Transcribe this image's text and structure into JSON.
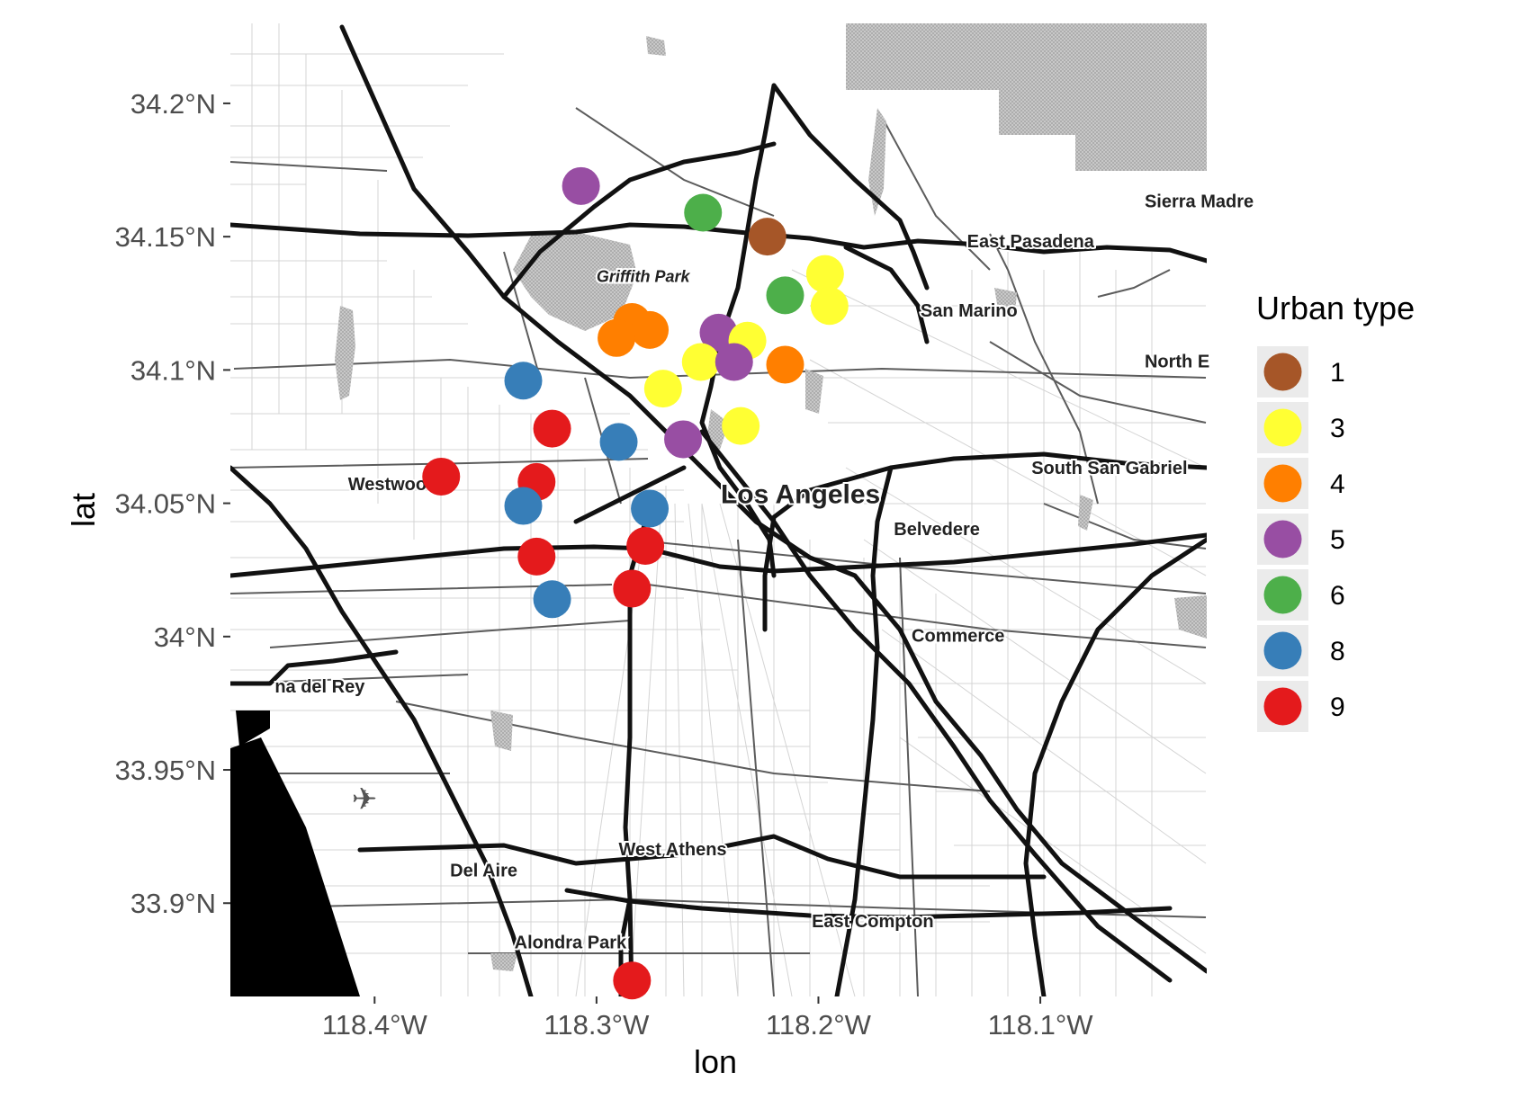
{
  "chart_data": {
    "type": "scatter",
    "title": "",
    "xlabel": "lon",
    "ylabel": "lat",
    "xlim": [
      -118.465,
      -118.025
    ],
    "ylim": [
      33.865,
      34.23
    ],
    "x_ticks": [
      {
        "value": -118.4,
        "label": "118.4°W"
      },
      {
        "value": -118.3,
        "label": "118.3°W"
      },
      {
        "value": -118.2,
        "label": "118.2°W"
      },
      {
        "value": -118.1,
        "label": "118.1°W"
      }
    ],
    "y_ticks": [
      {
        "value": 34.2,
        "label": "34.2°N"
      },
      {
        "value": 34.15,
        "label": "34.15°N"
      },
      {
        "value": 34.1,
        "label": "34.1°N"
      },
      {
        "value": 34.05,
        "label": "34.05°N"
      },
      {
        "value": 34.0,
        "label": "34°N"
      },
      {
        "value": 33.95,
        "label": "33.95°N"
      },
      {
        "value": 33.9,
        "label": "33.9°N"
      }
    ],
    "legend": {
      "title": "Urban type",
      "position": "right",
      "entries": [
        {
          "label": "1",
          "color": "#a65628"
        },
        {
          "label": "3",
          "color": "#ffff33"
        },
        {
          "label": "4",
          "color": "#ff7f00"
        },
        {
          "label": "5",
          "color": "#984ea3"
        },
        {
          "label": "6",
          "color": "#4daf4a"
        },
        {
          "label": "8",
          "color": "#377eb8"
        },
        {
          "label": "9",
          "color": "#e41a1c"
        }
      ]
    },
    "points": [
      {
        "lon": -118.307,
        "lat": 34.169,
        "type": "5"
      },
      {
        "lon": -118.252,
        "lat": 34.159,
        "type": "6"
      },
      {
        "lon": -118.223,
        "lat": 34.15,
        "type": "1"
      },
      {
        "lon": -118.197,
        "lat": 34.136,
        "type": "3"
      },
      {
        "lon": -118.215,
        "lat": 34.128,
        "type": "6"
      },
      {
        "lon": -118.195,
        "lat": 34.124,
        "type": "3"
      },
      {
        "lon": -118.284,
        "lat": 34.118,
        "type": "4"
      },
      {
        "lon": -118.276,
        "lat": 34.115,
        "type": "4"
      },
      {
        "lon": -118.291,
        "lat": 34.112,
        "type": "4"
      },
      {
        "lon": -118.245,
        "lat": 34.114,
        "type": "5"
      },
      {
        "lon": -118.232,
        "lat": 34.111,
        "type": "3"
      },
      {
        "lon": -118.253,
        "lat": 34.103,
        "type": "3"
      },
      {
        "lon": -118.238,
        "lat": 34.103,
        "type": "5"
      },
      {
        "lon": -118.215,
        "lat": 34.102,
        "type": "4"
      },
      {
        "lon": -118.333,
        "lat": 34.096,
        "type": "8"
      },
      {
        "lon": -118.27,
        "lat": 34.093,
        "type": "3"
      },
      {
        "lon": -118.32,
        "lat": 34.078,
        "type": "9"
      },
      {
        "lon": -118.235,
        "lat": 34.079,
        "type": "3"
      },
      {
        "lon": -118.29,
        "lat": 34.073,
        "type": "8"
      },
      {
        "lon": -118.261,
        "lat": 34.074,
        "type": "5"
      },
      {
        "lon": -118.37,
        "lat": 34.06,
        "type": "9"
      },
      {
        "lon": -118.327,
        "lat": 34.058,
        "type": "9"
      },
      {
        "lon": -118.333,
        "lat": 34.049,
        "type": "8"
      },
      {
        "lon": -118.276,
        "lat": 34.048,
        "type": "8"
      },
      {
        "lon": -118.278,
        "lat": 34.034,
        "type": "9"
      },
      {
        "lon": -118.327,
        "lat": 34.03,
        "type": "9"
      },
      {
        "lon": -118.284,
        "lat": 34.018,
        "type": "9"
      },
      {
        "lon": -118.32,
        "lat": 34.014,
        "type": "8"
      },
      {
        "lon": -118.284,
        "lat": 33.871,
        "type": "9"
      }
    ]
  },
  "map_labels": [
    {
      "text": "Sierra Madre",
      "lon": -118.053,
      "lat": 34.161,
      "size": 20,
      "italic": false
    },
    {
      "text": "East Pasadena",
      "lon": -118.133,
      "lat": 34.146,
      "size": 20,
      "italic": false
    },
    {
      "text": "San Marino",
      "lon": -118.154,
      "lat": 34.12,
      "size": 20,
      "italic": false
    },
    {
      "text": "North E",
      "lon": -118.053,
      "lat": 34.101,
      "size": 20,
      "italic": false
    },
    {
      "text": "Griffith Park",
      "lon": -118.3,
      "lat": 34.133,
      "size": 18,
      "italic": true
    },
    {
      "text": "Los Angeles",
      "lon": -118.244,
      "lat": 34.05,
      "size": 30,
      "italic": false
    },
    {
      "text": "Westwood",
      "lon": -118.412,
      "lat": 34.055,
      "size": 20,
      "italic": false
    },
    {
      "text": "South San Gabriel",
      "lon": -118.104,
      "lat": 34.061,
      "size": 20,
      "italic": false
    },
    {
      "text": "Belvedere",
      "lon": -118.166,
      "lat": 34.038,
      "size": 20,
      "italic": false
    },
    {
      "text": "Commerce",
      "lon": -118.158,
      "lat": 33.998,
      "size": 20,
      "italic": false
    },
    {
      "text": "na del Rey",
      "lon": -118.445,
      "lat": 33.979,
      "size": 20,
      "italic": false
    },
    {
      "text": "West Athens",
      "lon": -118.29,
      "lat": 33.918,
      "size": 20,
      "italic": false
    },
    {
      "text": "Del Aire",
      "lon": -118.366,
      "lat": 33.91,
      "size": 20,
      "italic": false
    },
    {
      "text": "East Compton",
      "lon": -118.203,
      "lat": 33.891,
      "size": 20,
      "italic": false
    },
    {
      "text": "Alondra Park",
      "lon": -118.337,
      "lat": 33.883,
      "size": 20,
      "italic": false
    }
  ]
}
